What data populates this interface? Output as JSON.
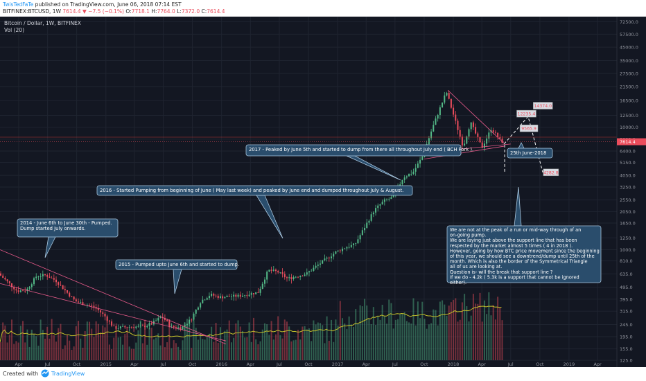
{
  "header": {
    "author": "TwisTedFaTe",
    "published_text": " published on TradingView.com, June 06, 2018 07:14 EST",
    "symbol": "BITFINEX:BTCUSD, 1W",
    "last": "7614.4",
    "change": "▼ −7.5 (−0.1%)",
    "open_label": "O:",
    "open": "7718.1",
    "high_label": "H:",
    "high": "7764.0",
    "low_label": "L:",
    "low": "7372.0",
    "close_label": "C:",
    "close": "7614.4",
    "pair_label": "Bitcoin / Dollar, 1W, BITFINEX",
    "vol_label": "Vol (20)"
  },
  "footer": {
    "created_with": "Created with",
    "brand": "TradingView"
  },
  "colors": {
    "bg": "#131722",
    "up": "#53b987",
    "down": "#eb4d5c",
    "line": "#e75a8a",
    "vol_ma": "#c6c22a",
    "box": "#2a4d6c",
    "box_border": "#aac8e0"
  },
  "chart_data": {
    "type": "candlestick",
    "title": "Bitcoin / Dollar, 1W, BITFINEX",
    "y_scale": "log",
    "y_ticks": [
      "72500.0",
      "57500.0",
      "45000.0",
      "35000.0",
      "27500.0",
      "21500.0",
      "16500.0",
      "12500.0",
      "10000.0",
      "8000.0",
      "6400.0",
      "5150.0",
      "4050.0",
      "3250.0",
      "2550.0",
      "2050.0",
      "1650.0",
      "1250.0",
      "1000.0",
      "810.0",
      "635.0",
      "495.0",
      "395.0",
      "315.0",
      "245.0",
      "195.0",
      "155.0",
      "125.0"
    ],
    "x_ticks": [
      "Apr",
      "Jul",
      "Oct",
      "2015",
      "Apr",
      "Jul",
      "Oct",
      "2016",
      "Apr",
      "Jul",
      "Oct",
      "2017",
      "Apr",
      "Jul",
      "Oct",
      "2018",
      "Apr",
      "Jul",
      "Oct",
      "2019",
      "Apr"
    ],
    "last_price": "7614.4",
    "price_path": [
      [
        "2014-02-01",
        640
      ],
      [
        "2014-04-01",
        460
      ],
      [
        "2014-05-01",
        470
      ],
      [
        "2014-06-01",
        610
      ],
      [
        "2014-07-01",
        620
      ],
      [
        "2014-08-01",
        560
      ],
      [
        "2014-10-01",
        380
      ],
      [
        "2014-12-01",
        340
      ],
      [
        "2015-01-01",
        290
      ],
      [
        "2015-02-01",
        230
      ],
      [
        "2015-04-01",
        235
      ],
      [
        "2015-05-01",
        235
      ],
      [
        "2015-06-01",
        250
      ],
      [
        "2015-07-01",
        285
      ],
      [
        "2015-08-01",
        235
      ],
      [
        "2015-09-01",
        230
      ],
      [
        "2015-10-01",
        270
      ],
      [
        "2015-11-01",
        380
      ],
      [
        "2015-12-01",
        430
      ],
      [
        "2016-01-01",
        410
      ],
      [
        "2016-03-01",
        420
      ],
      [
        "2016-05-01",
        450
      ],
      [
        "2016-06-01",
        680
      ],
      [
        "2016-07-01",
        660
      ],
      [
        "2016-08-01",
        580
      ],
      [
        "2016-10-01",
        640
      ],
      [
        "2016-11-01",
        740
      ],
      [
        "2017-01-01",
        960
      ],
      [
        "2017-02-01",
        1050
      ],
      [
        "2017-03-01",
        1100
      ],
      [
        "2017-05-01",
        2100
      ],
      [
        "2017-06-01",
        2500
      ],
      [
        "2017-07-01",
        2700
      ],
      [
        "2017-08-01",
        3900
      ],
      [
        "2017-09-01",
        4300
      ],
      [
        "2017-10-01",
        5800
      ],
      [
        "2017-11-01",
        9900
      ],
      [
        "2017-12-15",
        19500
      ],
      [
        "2018-01-01",
        14000
      ],
      [
        "2018-02-06",
        6900
      ],
      [
        "2018-03-01",
        11000
      ],
      [
        "2018-04-06",
        6800
      ],
      [
        "2018-05-06",
        9800
      ],
      [
        "2018-06-06",
        7614
      ]
    ],
    "projection_labels": [
      "12235.4",
      "14374.0",
      "9565.9",
      "4282.8"
    ],
    "annotations": [
      {
        "text": "2014 - June 6th to June 30th - Pumped.\nDump started July onwards."
      },
      {
        "text": "2015 - Pumped upto June 6th and started to dump."
      },
      {
        "text": "2016 - Started Pumping from beginning of June ( May last week) and peaked by June end and dumped throughout July & August."
      },
      {
        "text": "2017 - Peaked by June 5th and started to dump from there all throughout July end ( BCH Fork )."
      },
      {
        "text": "25th June-2018"
      },
      {
        "text": "We are not at the peak of a run or mid-way through of an on-going pump.\nWe are laying just above the support line that has been respected by the market almost 5 times ( 4 in 2018 ).\nHowever, going by how BTC price movement since the beginning of this year, we should see a downtrend/dump until 25th of the month. Which is also the border of the Symmetrical Triangle all of us are looking at.\nQuestion is- will the break that support line ?\nIf we do - 4.2k ( 5.3k is a support that cannot be ignored either)."
      }
    ]
  }
}
